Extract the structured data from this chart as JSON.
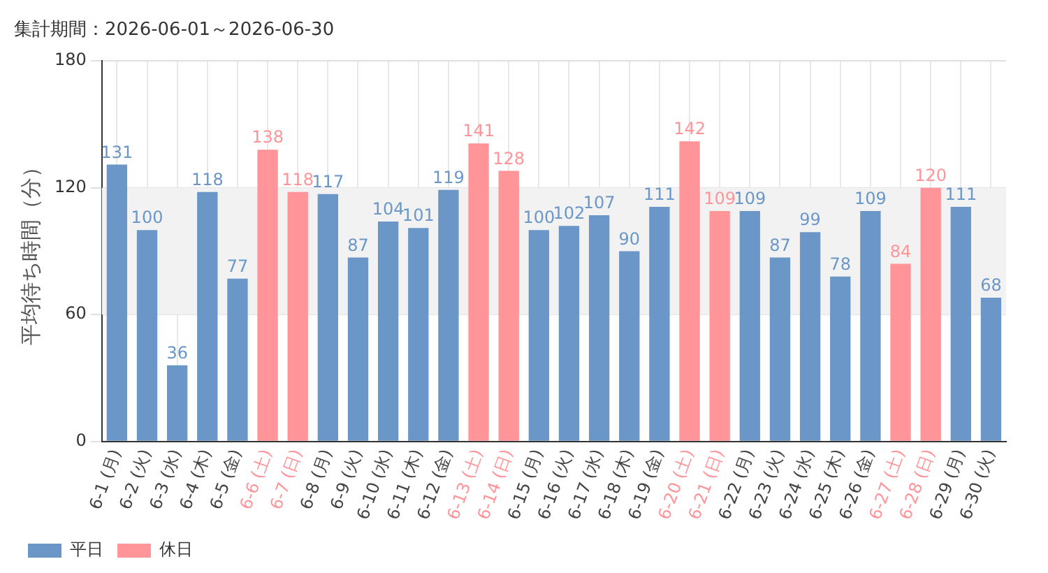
{
  "chart_data": {
    "type": "bar",
    "title": "集計期間：2026-06-01～2026-06-30",
    "ylabel": "平均待ち時間（分）",
    "categories": [
      "6-1 (月)",
      "6-2 (火)",
      "6-3 (水)",
      "6-4 (木)",
      "6-5 (金)",
      "6-6 (土)",
      "6-7 (日)",
      "6-8 (月)",
      "6-9 (火)",
      "6-10 (水)",
      "6-11 (木)",
      "6-12 (金)",
      "6-13 (土)",
      "6-14 (日)",
      "6-15 (月)",
      "6-16 (火)",
      "6-17 (水)",
      "6-18 (木)",
      "6-19 (金)",
      "6-20 (土)",
      "6-21 (日)",
      "6-22 (月)",
      "6-23 (火)",
      "6-24 (水)",
      "6-25 (木)",
      "6-26 (金)",
      "6-27 (土)",
      "6-28 (日)",
      "6-29 (月)",
      "6-30 (火)"
    ],
    "series": [
      {
        "name": "平日",
        "color": "#6a97c8",
        "values": [
          131,
          100,
          36,
          118,
          77,
          null,
          null,
          117,
          87,
          104,
          101,
          119,
          null,
          null,
          100,
          102,
          107,
          90,
          111,
          null,
          null,
          109,
          87,
          99,
          78,
          109,
          null,
          null,
          111,
          68
        ]
      },
      {
        "name": "休日",
        "color": "#ff9499",
        "values": [
          null,
          null,
          null,
          null,
          null,
          138,
          118,
          null,
          null,
          null,
          null,
          null,
          141,
          128,
          null,
          null,
          null,
          null,
          null,
          142,
          109,
          null,
          null,
          null,
          null,
          null,
          84,
          120,
          null,
          null
        ]
      }
    ],
    "ylim": [
      0,
      180
    ],
    "yticks": [
      0,
      60,
      120,
      180
    ],
    "grid": true,
    "legend": "bottom left",
    "data_labels": true,
    "bands": [
      {
        "axis": "y",
        "from": 60,
        "to": 120,
        "color": "#f2f2f2"
      }
    ]
  }
}
